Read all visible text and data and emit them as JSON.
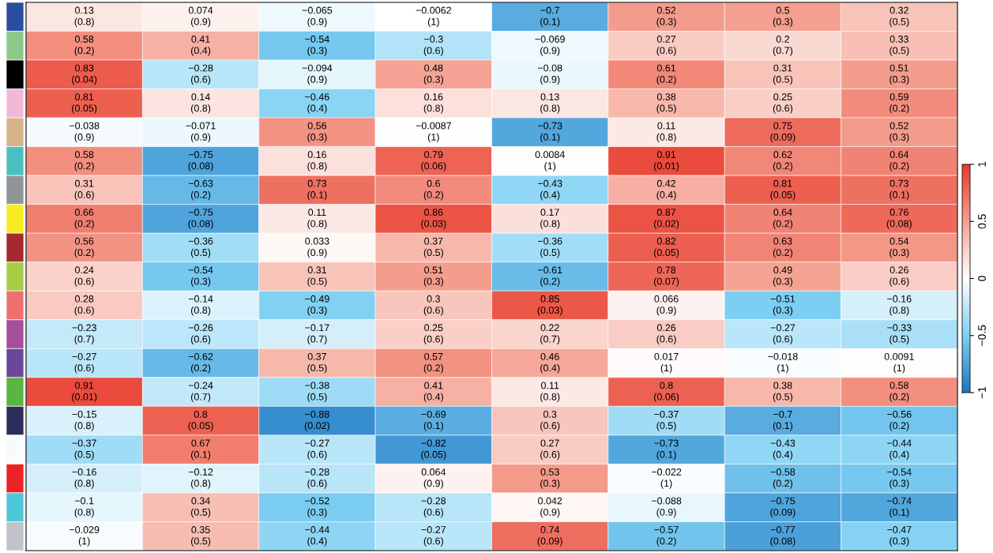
{
  "chart_data": {
    "type": "heatmap",
    "categories": [
      null,
      null,
      null,
      null,
      null,
      null,
      null,
      null
    ],
    "y_categories": [
      null,
      null,
      null,
      null,
      null,
      null,
      null,
      null,
      null,
      null,
      null,
      null,
      null,
      null,
      null,
      null,
      null,
      null,
      null
    ],
    "cells": [
      [
        0.13,
        0.074,
        -0.065,
        -0.0062,
        -0.7,
        0.52,
        0.5,
        0.32
      ],
      [
        0.58,
        0.41,
        -0.54,
        -0.3,
        -0.069,
        0.27,
        0.2,
        0.33
      ],
      [
        0.83,
        -0.28,
        -0.094,
        0.48,
        -0.08,
        0.61,
        0.31,
        0.51
      ],
      [
        0.81,
        0.14,
        -0.46,
        0.16,
        0.13,
        0.38,
        0.25,
        0.59
      ],
      [
        -0.038,
        -0.071,
        0.56,
        -0.0087,
        -0.73,
        0.11,
        0.75,
        0.52
      ],
      [
        0.58,
        -0.75,
        0.16,
        0.79,
        0.0084,
        0.91,
        0.62,
        0.64
      ],
      [
        0.31,
        -0.63,
        0.73,
        0.6,
        -0.43,
        0.42,
        0.81,
        0.73
      ],
      [
        0.66,
        -0.75,
        0.11,
        0.86,
        0.17,
        0.87,
        0.64,
        0.76
      ],
      [
        0.56,
        -0.36,
        0.033,
        0.37,
        -0.36,
        0.82,
        0.63,
        0.54
      ],
      [
        0.24,
        -0.54,
        0.31,
        0.51,
        -0.61,
        0.78,
        0.49,
        0.26
      ],
      [
        0.28,
        -0.14,
        -0.49,
        0.3,
        0.85,
        0.066,
        -0.51,
        -0.16
      ],
      [
        -0.23,
        -0.26,
        -0.17,
        0.25,
        0.22,
        0.26,
        -0.27,
        -0.33
      ],
      [
        -0.27,
        -0.62,
        0.37,
        0.57,
        0.46,
        0.017,
        -0.018,
        0.0091
      ],
      [
        0.91,
        -0.24,
        -0.38,
        0.41,
        0.11,
        0.8,
        0.38,
        0.58
      ],
      [
        -0.15,
        0.8,
        -0.88,
        -0.69,
        0.3,
        -0.37,
        -0.7,
        -0.56
      ],
      [
        -0.37,
        0.67,
        -0.27,
        -0.82,
        0.27,
        -0.73,
        -0.43,
        -0.44
      ],
      [
        -0.16,
        -0.12,
        -0.28,
        0.064,
        0.53,
        -0.022,
        -0.58,
        -0.54
      ],
      [
        -0.1,
        0.34,
        -0.52,
        -0.28,
        0.042,
        -0.088,
        -0.75,
        -0.74
      ],
      [
        -0.029,
        0.35,
        -0.44,
        -0.27,
        0.74,
        -0.57,
        -0.77,
        -0.47
      ]
    ],
    "cell_labels": [
      [
        "0.13\n(0.8)",
        "0.074\n(0.9)",
        "−0.065\n(0.9)",
        "−0.0062\n(1)",
        "−0.7\n(0.1)",
        "0.52\n(0.3)",
        "0.5\n(0.3)",
        "0.32\n(0.5)"
      ],
      [
        "0.58\n(0.2)",
        "0.41\n(0.4)",
        "−0.54\n(0.3)",
        "−0.3\n(0.6)",
        "−0.069\n(0.9)",
        "0.27\n(0.6)",
        "0.2\n(0.7)",
        "0.33\n(0.5)"
      ],
      [
        "0.83\n(0.04)",
        "−0.28\n(0.6)",
        "−0.094\n(0.9)",
        "0.48\n(0.3)",
        "−0.08\n(0.9)",
        "0.61\n(0.2)",
        "0.31\n(0.5)",
        "0.51\n(0.3)"
      ],
      [
        "0.81\n(0.05)",
        "0.14\n(0.8)",
        "−0.46\n(0.4)",
        "0.16\n(0.8)",
        "0.13\n(0.8)",
        "0.38\n(0.5)",
        "0.25\n(0.6)",
        "0.59\n(0.2)"
      ],
      [
        "−0.038\n(0.9)",
        "−0.071\n(0.9)",
        "0.56\n(0.3)",
        "−0.0087\n(1)",
        "−0.73\n(0.1)",
        "0.11\n(0.8)",
        "0.75\n(0.09)",
        "0.52\n(0.3)"
      ],
      [
        "0.58\n(0.2)",
        "−0.75\n(0.08)",
        "0.16\n(0.8)",
        "0.79\n(0.06)",
        "0.0084\n(1)",
        "0.91\n(0.01)",
        "0.62\n(0.2)",
        "0.64\n(0.2)"
      ],
      [
        "0.31\n(0.6)",
        "−0.63\n(0.2)",
        "0.73\n(0.1)",
        "0.6\n(0.2)",
        "−0.43\n(0.4)",
        "0.42\n(0.4)",
        "0.81\n(0.05)",
        "0.73\n(0.1)"
      ],
      [
        "0.66\n(0.2)",
        "−0.75\n(0.08)",
        "0.11\n(0.8)",
        "0.86\n(0.03)",
        "0.17\n(0.8)",
        "0.87\n(0.02)",
        "0.64\n(0.2)",
        "0.76\n(0.08)"
      ],
      [
        "0.56\n(0.2)",
        "−0.36\n(0.5)",
        "0.033\n(0.9)",
        "0.37\n(0.5)",
        "−0.36\n(0.5)",
        "0.82\n(0.05)",
        "0.63\n(0.2)",
        "0.54\n(0.3)"
      ],
      [
        "0.24\n(0.6)",
        "−0.54\n(0.3)",
        "0.31\n(0.5)",
        "0.51\n(0.3)",
        "−0.61\n(0.2)",
        "0.78\n(0.07)",
        "0.49\n(0.3)",
        "0.26\n(0.6)"
      ],
      [
        "0.28\n(0.6)",
        "−0.14\n(0.8)",
        "−0.49\n(0.3)",
        "0.3\n(0.6)",
        "0.85\n(0.03)",
        "0.066\n(0.9)",
        "−0.51\n(0.3)",
        "−0.16\n(0.8)"
      ],
      [
        "−0.23\n(0.7)",
        "−0.26\n(0.6)",
        "−0.17\n(0.7)",
        "0.25\n(0.6)",
        "0.22\n(0.7)",
        "0.26\n(0.6)",
        "−0.27\n(0.6)",
        "−0.33\n(0.5)"
      ],
      [
        "−0.27\n(0.6)",
        "−0.62\n(0.2)",
        "0.37\n(0.5)",
        "0.57\n(0.2)",
        "0.46\n(0.4)",
        "0.017\n(1)",
        "−0.018\n(1)",
        "0.0091\n(1)"
      ],
      [
        "0.91\n(0.01)",
        "−0.24\n(0.7)",
        "−0.38\n(0.5)",
        "0.41\n(0.4)",
        "0.11\n(0.8)",
        "0.8\n(0.06)",
        "0.38\n(0.5)",
        "0.58\n(0.2)"
      ],
      [
        "−0.15\n(0.8)",
        "0.8\n(0.05)",
        "−0.88\n(0.02)",
        "−0.69\n(0.1)",
        "0.3\n(0.6)",
        "−0.37\n(0.5)",
        "−0.7\n(0.1)",
        "−0.56\n(0.2)"
      ],
      [
        "−0.37\n(0.5)",
        "0.67\n(0.1)",
        "−0.27\n(0.6)",
        "−0.82\n(0.05)",
        "0.27\n(0.6)",
        "−0.73\n(0.1)",
        "−0.43\n(0.4)",
        "−0.44\n(0.4)"
      ],
      [
        "−0.16\n(0.8)",
        "−0.12\n(0.8)",
        "−0.28\n(0.6)",
        "0.064\n(0.9)",
        "0.53\n(0.3)",
        "−0.022\n(1)",
        "−0.58\n(0.2)",
        "−0.54\n(0.3)"
      ],
      [
        "−0.1\n(0.8)",
        "0.34\n(0.5)",
        "−0.52\n(0.3)",
        "−0.28\n(0.6)",
        "0.042\n(0.9)",
        "−0.088\n(0.9)",
        "−0.75\n(0.09)",
        "−0.74\n(0.1)"
      ],
      [
        "−0.029\n(1)",
        "0.35\n(0.5)",
        "−0.44\n(0.4)",
        "−0.27\n(0.6)",
        "0.74\n(0.09)",
        "−0.57\n(0.2)",
        "−0.77\n(0.08)",
        "−0.47\n(0.3)"
      ]
    ],
    "clim": [
      -1,
      1
    ],
    "cticks": [
      {
        "value": -1,
        "label": "−1"
      },
      {
        "value": -0.5,
        "label": "−0.5"
      },
      0,
      0.5,
      1
    ]
  }
}
